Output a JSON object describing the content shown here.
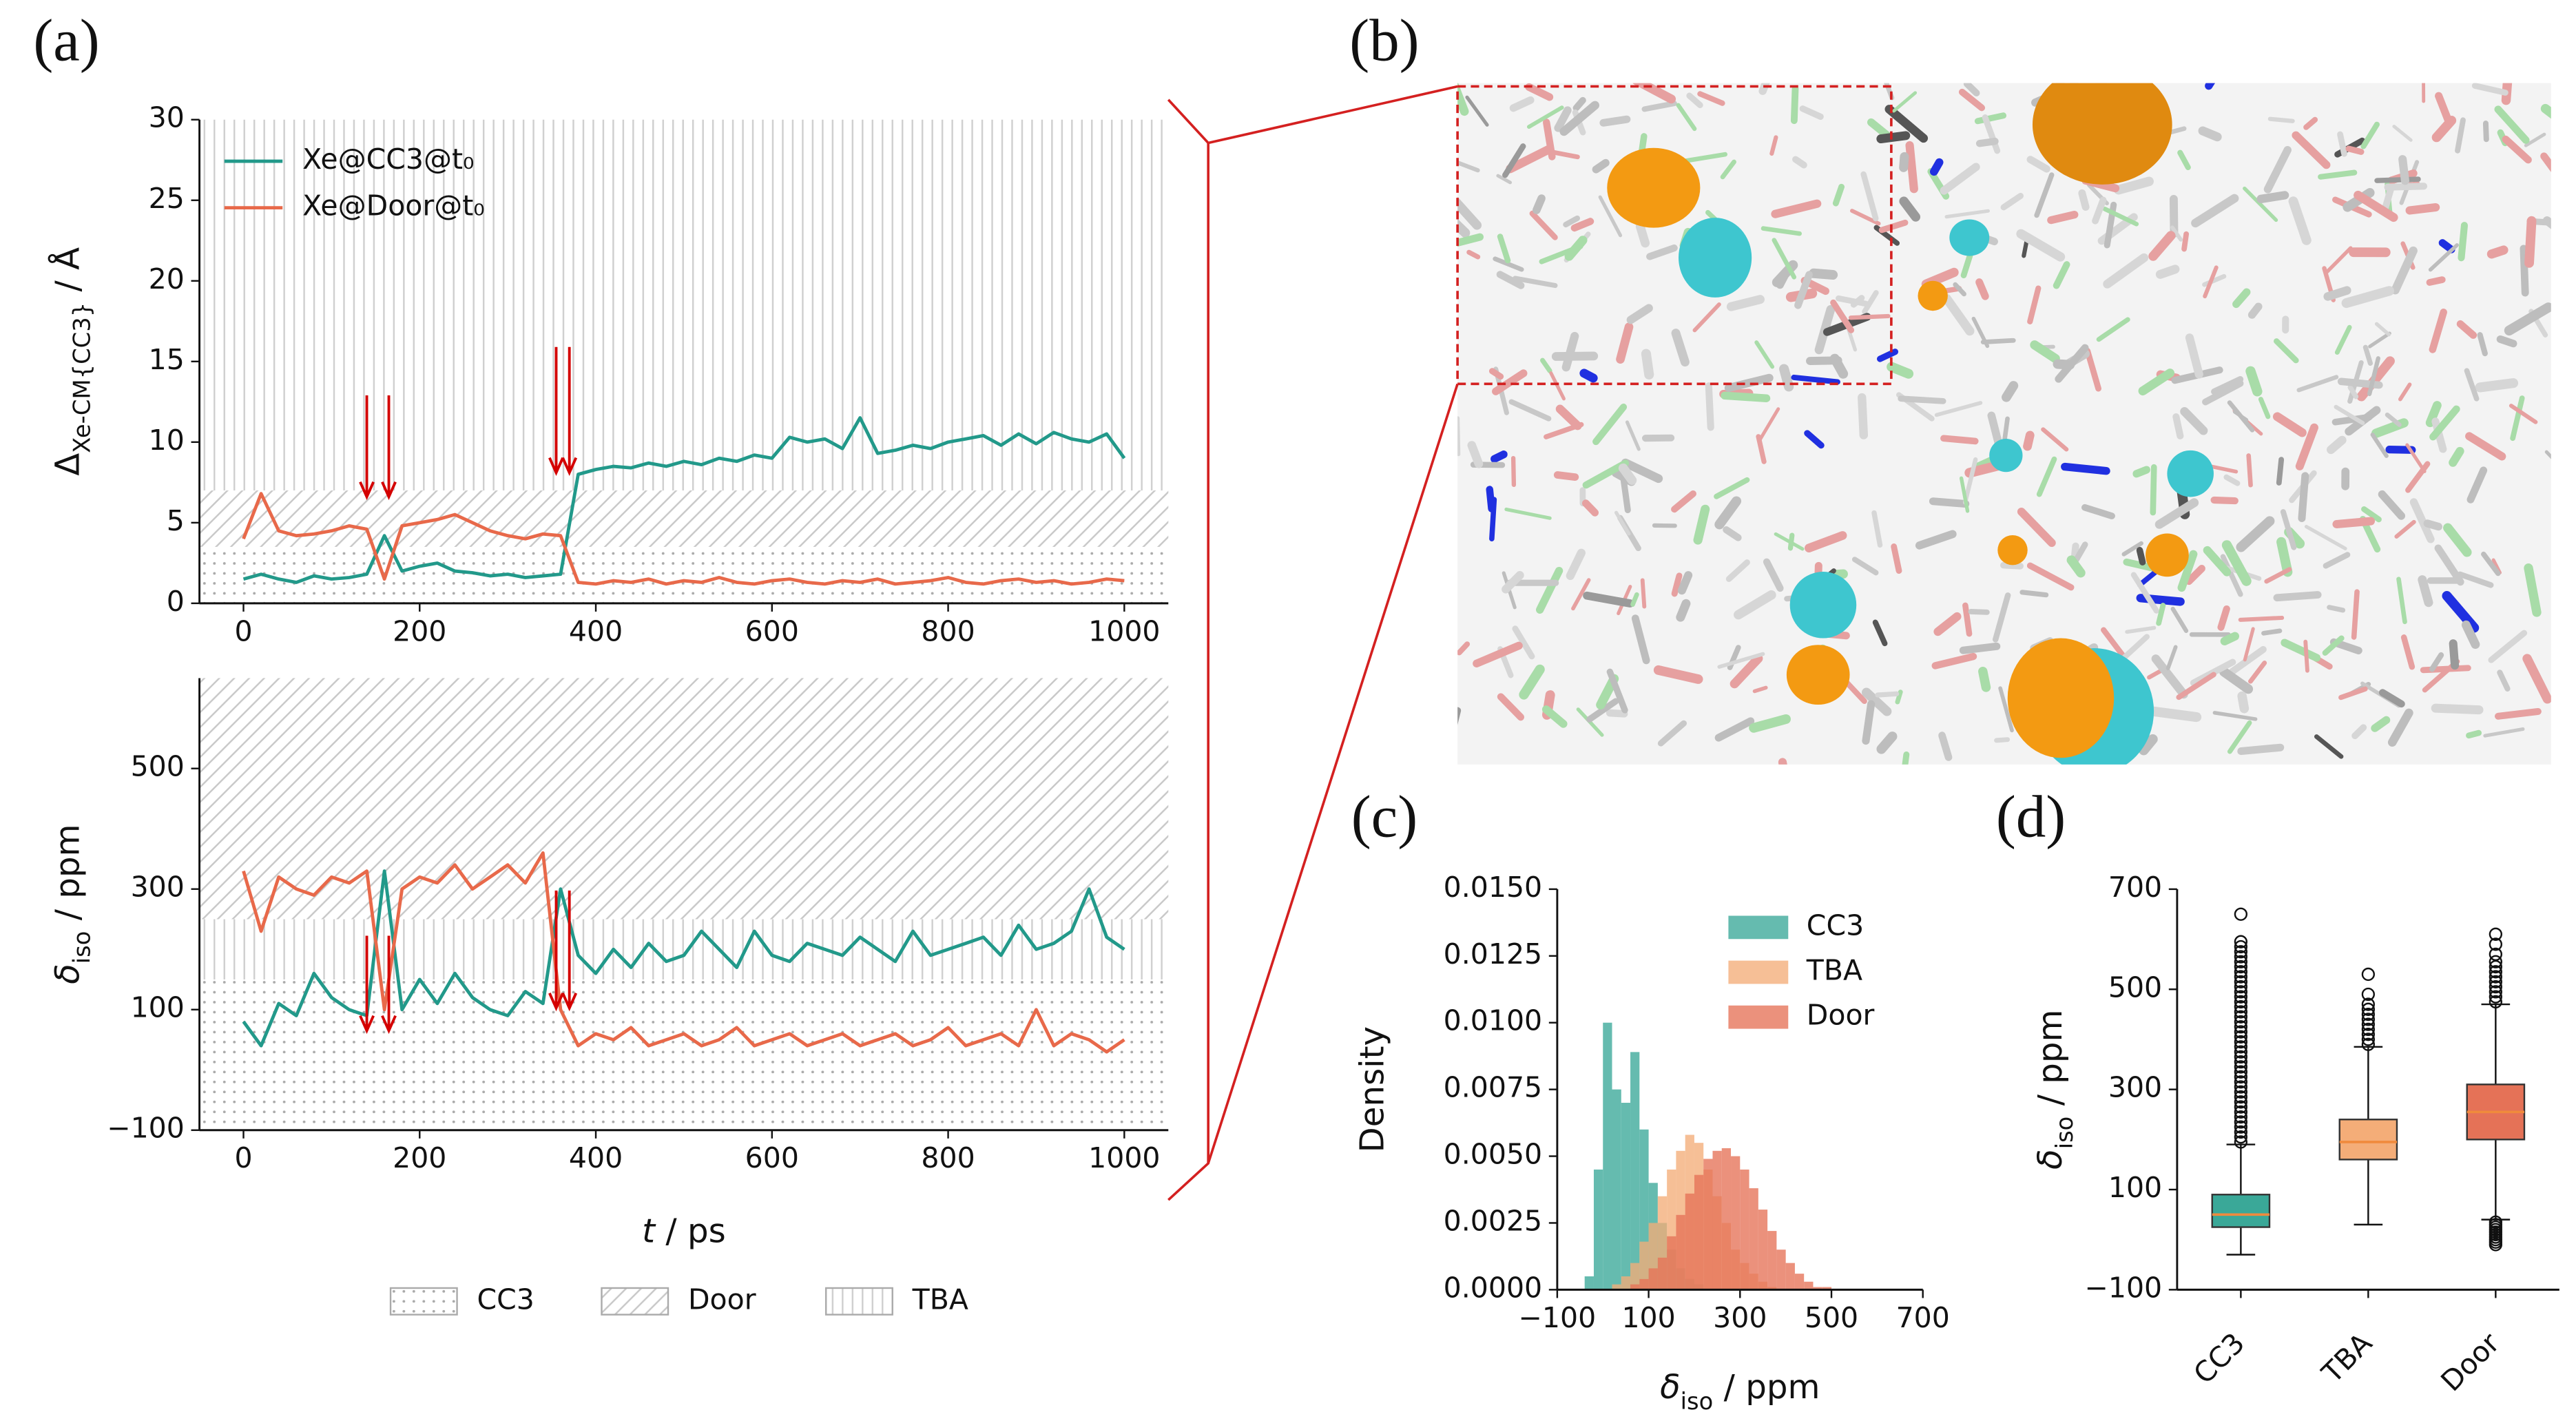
{
  "panel_b": {
    "label": "(b)"
  },
  "region_legend": {
    "names": [
      "CC3",
      "Door",
      "TBA"
    ]
  },
  "chart_data": [
    {
      "type": "line",
      "panel_label": "(a)",
      "y_label": [
        "Δ",
        "Xe-CM{CC3}",
        " / Å"
      ],
      "x": [
        0,
        20,
        40,
        60,
        80,
        100,
        120,
        140,
        160,
        180,
        200,
        220,
        240,
        260,
        280,
        300,
        320,
        340,
        360,
        380,
        400,
        420,
        440,
        460,
        480,
        500,
        520,
        540,
        560,
        580,
        600,
        620,
        640,
        660,
        680,
        700,
        720,
        740,
        760,
        780,
        800,
        820,
        840,
        860,
        880,
        900,
        920,
        940,
        960,
        980,
        1000
      ],
      "series": [
        {
          "name": "Xe@CC3@t₀",
          "color": "#22998a",
          "values": [
            1.5,
            1.8,
            1.5,
            1.3,
            1.7,
            1.5,
            1.6,
            1.8,
            4.2,
            2.0,
            2.3,
            2.5,
            2.0,
            1.9,
            1.7,
            1.8,
            1.6,
            1.7,
            1.8,
            8.0,
            8.3,
            8.5,
            8.4,
            8.7,
            8.5,
            8.8,
            8.6,
            9.0,
            8.8,
            9.2,
            9.0,
            10.3,
            10.0,
            10.2,
            9.6,
            11.5,
            9.3,
            9.5,
            9.8,
            9.6,
            10.0,
            10.2,
            10.4,
            9.8,
            10.5,
            9.9,
            10.6,
            10.2,
            10.0,
            10.5,
            9.0
          ]
        },
        {
          "name": "Xe@Door@t₀",
          "color": "#e8694a",
          "values": [
            4.0,
            6.8,
            4.5,
            4.2,
            4.3,
            4.5,
            4.8,
            4.6,
            1.5,
            4.8,
            5.0,
            5.2,
            5.5,
            5.0,
            4.5,
            4.2,
            4.0,
            4.3,
            4.2,
            1.3,
            1.2,
            1.4,
            1.3,
            1.5,
            1.2,
            1.4,
            1.3,
            1.6,
            1.3,
            1.2,
            1.4,
            1.5,
            1.3,
            1.2,
            1.4,
            1.3,
            1.5,
            1.2,
            1.3,
            1.4,
            1.6,
            1.3,
            1.2,
            1.4,
            1.5,
            1.3,
            1.4,
            1.2,
            1.3,
            1.5,
            1.4
          ]
        }
      ],
      "regions": [
        [
          0,
          3.5
        ],
        [
          3.5,
          7
        ],
        [
          7,
          30
        ]
      ],
      "arrow_x": [
        140,
        165,
        355,
        370
      ],
      "xlim": [
        -50,
        1050
      ],
      "xticks": [
        0,
        200,
        400,
        600,
        800,
        1000
      ],
      "ylim": [
        0,
        30
      ],
      "yticks": [
        0,
        5,
        10,
        15,
        20,
        25,
        30
      ],
      "legend": "upper left"
    },
    {
      "type": "line",
      "y_label": [
        "δ",
        "iso",
        " / ppm"
      ],
      "x_label": [
        "t",
        " / ps"
      ],
      "x": [
        0,
        20,
        40,
        60,
        80,
        100,
        120,
        140,
        160,
        180,
        200,
        220,
        240,
        260,
        280,
        300,
        320,
        340,
        360,
        380,
        400,
        420,
        440,
        460,
        480,
        500,
        520,
        540,
        560,
        580,
        600,
        620,
        640,
        660,
        680,
        700,
        720,
        740,
        760,
        780,
        800,
        820,
        840,
        860,
        880,
        900,
        920,
        940,
        960,
        980,
        1000
      ],
      "series": [
        {
          "color": "#22998a",
          "values": [
            80,
            40,
            110,
            90,
            160,
            120,
            100,
            90,
            330,
            100,
            150,
            110,
            160,
            120,
            100,
            90,
            130,
            110,
            300,
            190,
            160,
            200,
            170,
            210,
            180,
            190,
            230,
            200,
            170,
            230,
            190,
            180,
            210,
            200,
            190,
            220,
            200,
            180,
            230,
            190,
            200,
            210,
            220,
            190,
            240,
            200,
            210,
            230,
            300,
            220,
            200
          ]
        },
        {
          "color": "#e8694a",
          "values": [
            330,
            230,
            320,
            300,
            290,
            320,
            310,
            330,
            100,
            300,
            320,
            310,
            340,
            300,
            320,
            340,
            310,
            360,
            100,
            40,
            60,
            50,
            70,
            40,
            50,
            60,
            40,
            50,
            70,
            40,
            50,
            60,
            40,
            50,
            60,
            40,
            50,
            60,
            40,
            50,
            70,
            40,
            50,
            60,
            40,
            100,
            40,
            60,
            50,
            30,
            50
          ]
        }
      ],
      "regions": [
        [
          -100,
          150
        ],
        [
          250,
          650
        ],
        [
          150,
          250
        ]
      ],
      "arrow_x": [
        140,
        165,
        355,
        370
      ],
      "xlim": [
        -50,
        1050
      ],
      "xticks": [
        0,
        200,
        400,
        600,
        800,
        1000
      ],
      "ylim": [
        -100,
        650
      ],
      "yticks": [
        {
          "value": -100,
          "label": "−100"
        },
        100,
        300,
        500
      ]
    },
    {
      "type": "histogram",
      "panel_label": "(c)",
      "y_label": [
        "Density"
      ],
      "x_label": [
        "δ",
        "iso",
        " / ppm"
      ],
      "bins": [
        -40,
        -20,
        0,
        20,
        40,
        60,
        80,
        100,
        120,
        140,
        160,
        180,
        200,
        220,
        240,
        260,
        280,
        300,
        320,
        340,
        360,
        380,
        400,
        420,
        440,
        460,
        480,
        500
      ],
      "series": [
        {
          "name": "CC3",
          "color": "#3aa898",
          "values": [
            0.0005,
            0.0045,
            0.01,
            0.0075,
            0.007,
            0.0089,
            0.006,
            0.004,
            0.0025,
            0.0015,
            0.0008,
            0.0004,
            0.0002,
            0,
            0,
            0,
            0,
            0,
            0,
            0,
            0,
            0,
            0,
            0,
            0,
            0,
            0
          ]
        },
        {
          "name": "TBA",
          "color": "#f4ad78",
          "values": [
            0,
            0,
            0,
            0.0002,
            0.0005,
            0.001,
            0.0018,
            0.0025,
            0.0035,
            0.0045,
            0.0052,
            0.0058,
            0.0055,
            0.0045,
            0.0035,
            0.0025,
            0.0015,
            0.001,
            0.0006,
            0.0003,
            0.0001,
            0,
            0,
            0,
            0,
            0,
            0
          ]
        },
        {
          "name": "Door",
          "color": "#e57257",
          "values": [
            0,
            0,
            0,
            0,
            0,
            0.0002,
            0.0004,
            0.0008,
            0.0012,
            0.002,
            0.0028,
            0.0036,
            0.0043,
            0.0049,
            0.0052,
            0.0053,
            0.005,
            0.0045,
            0.0038,
            0.003,
            0.0022,
            0.0015,
            0.001,
            0.0006,
            0.0003,
            0.0001,
            0.0001
          ]
        }
      ],
      "xlim": [
        -100,
        700
      ],
      "xticks": [
        {
          "value": -100,
          "label": "−100"
        },
        100,
        300,
        500,
        700
      ],
      "ylim": [
        0,
        0.015
      ],
      "yticks": [
        {
          "value": 0,
          "label": "0.0000"
        },
        {
          "value": 0.0025,
          "label": "0.0025"
        },
        {
          "value": 0.005,
          "label": "0.0050"
        },
        {
          "value": 0.0075,
          "label": "0.0075"
        },
        {
          "value": 0.01,
          "label": "0.0100"
        },
        {
          "value": 0.0125,
          "label": "0.0125"
        },
        {
          "value": 0.015,
          "label": "0.0150"
        }
      ],
      "legend": "upper right"
    },
    {
      "type": "box",
      "panel_label": "(d)",
      "y_label": [
        "δ",
        "iso",
        " / ppm"
      ],
      "categories": [
        "CC3",
        "TBA",
        "Door"
      ],
      "colors": [
        "#3aa898",
        "#f4ad78",
        "#e57257"
      ],
      "median_color": "#f08a3c",
      "boxes": [
        {
          "whisker_low": -30,
          "q1": 25,
          "median": 50,
          "q3": 90,
          "whisker_high": 190,
          "outliers": [
            195,
            205,
            215,
            225,
            235,
            245,
            255,
            265,
            275,
            285,
            295,
            305,
            315,
            325,
            335,
            345,
            355,
            365,
            375,
            385,
            395,
            405,
            415,
            425,
            435,
            445,
            455,
            465,
            475,
            485,
            495,
            505,
            515,
            525,
            535,
            545,
            555,
            565,
            575,
            585,
            595,
            650
          ]
        },
        {
          "whisker_low": 30,
          "q1": 160,
          "median": 195,
          "q3": 240,
          "whisker_high": 385,
          "outliers": [
            390,
            400,
            410,
            420,
            430,
            440,
            450,
            460,
            470,
            490,
            530
          ]
        },
        {
          "whisker_low": 40,
          "q1": 200,
          "median": 255,
          "q3": 310,
          "whisker_high": 470,
          "outliers": [
            -10,
            -5,
            0,
            5,
            10,
            15,
            20,
            25,
            30,
            35,
            475,
            485,
            495,
            505,
            515,
            525,
            535,
            545,
            555,
            570,
            590,
            610
          ]
        }
      ],
      "ylim": [
        -100,
        700
      ],
      "yticks": [
        {
          "value": -100,
          "label": "−100"
        },
        100,
        300,
        500,
        700
      ]
    }
  ]
}
